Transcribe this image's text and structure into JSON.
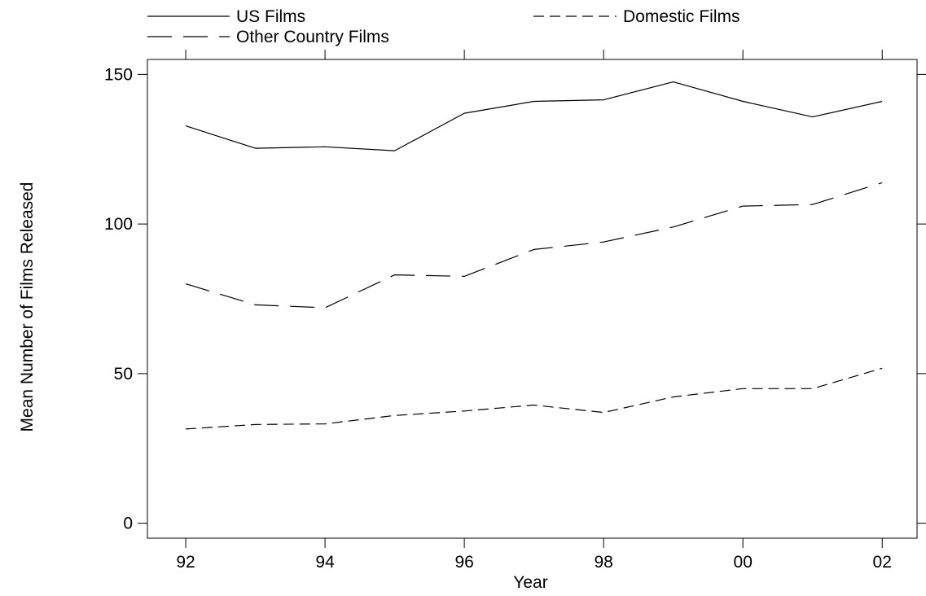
{
  "chart_data": {
    "type": "line",
    "title": "",
    "xlabel": "Year",
    "ylabel": "Mean Number of Films Released",
    "x": [
      1992,
      1993,
      1994,
      1995,
      1996,
      1997,
      1998,
      1999,
      2000,
      2001,
      2002
    ],
    "x_ticks": [
      {
        "value": 1992,
        "label": "92"
      },
      {
        "value": 1994,
        "label": "94"
      },
      {
        "value": 1996,
        "label": "96"
      },
      {
        "value": 1998,
        "label": "98"
      },
      {
        "value": 2000,
        "label": "00"
      },
      {
        "value": 2002,
        "label": "02"
      }
    ],
    "xlim": [
      1991.45,
      2002.5
    ],
    "y_ticks": [
      0,
      50,
      100,
      150
    ],
    "ylim": [
      -5,
      155
    ],
    "grid": false,
    "legend_position": "top",
    "series": [
      {
        "name": "US Films",
        "style": "solid",
        "values": [
          132.8,
          125.3,
          125.8,
          124.5,
          137.0,
          141.0,
          141.5,
          147.5,
          141.0,
          135.8,
          141.0
        ]
      },
      {
        "name": "Domestic Films",
        "style": "short-dash",
        "values": [
          31.5,
          33.0,
          33.2,
          36.0,
          37.5,
          39.5,
          37.0,
          42.2,
          45.0,
          45.0,
          51.8
        ]
      },
      {
        "name": "Other Country Films",
        "style": "long-dash",
        "values": [
          80.0,
          73.0,
          72.0,
          83.0,
          82.5,
          91.5,
          94.0,
          99.0,
          106.0,
          106.5,
          113.8
        ]
      }
    ],
    "colors": {
      "line": "#000000",
      "background": "#ffffff"
    }
  }
}
